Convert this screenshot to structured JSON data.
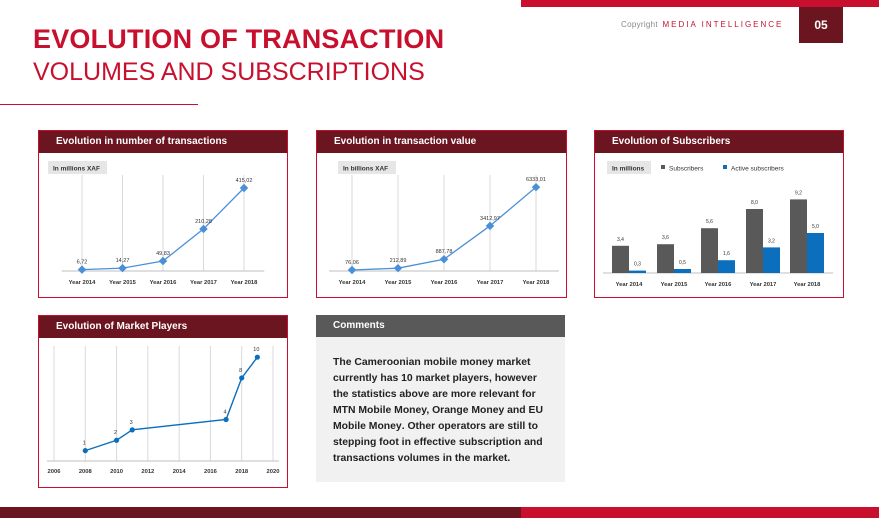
{
  "header": {
    "copyright_label": "Copyright",
    "copyright_brand": "MEDIA INTELLIGENCE",
    "page_number": "05",
    "title_line1": "EVOLUTION OF TRANSACTION",
    "title_line2": "VOLUMES AND SUBSCRIPTIONS"
  },
  "colors": {
    "accent": "#c8102e",
    "dark": "#6b1520",
    "line": "#4a90d9",
    "bar_gray": "#595959",
    "bar_blue": "#0b6fbd"
  },
  "chart_data": [
    {
      "type": "line",
      "title": "Evolution in number of transactions",
      "unit_label": "In millions XAF",
      "categories": [
        "Year 2014",
        "Year 2015",
        "Year 2016",
        "Year 2017",
        "Year 2018"
      ],
      "values": [
        6.72,
        14.27,
        49.83,
        210.28,
        415.02
      ],
      "value_labels": [
        "6,72",
        "14,27",
        "49,83",
        "210,28",
        "415,02"
      ],
      "ylim": [
        0,
        450
      ],
      "grid": "vertical"
    },
    {
      "type": "line",
      "title": "Evolution in transaction value",
      "unit_label": "In billions XAF",
      "categories": [
        "Year 2014",
        "Year 2015",
        "Year 2016",
        "Year 2017",
        "Year 2018"
      ],
      "values": [
        76.06,
        212.89,
        887.78,
        3412.97,
        6333.01
      ],
      "value_labels": [
        "76,06",
        "212,89",
        "887,78",
        "3412,97",
        "6333,01"
      ],
      "ylim": [
        0,
        6800
      ],
      "grid": "vertical"
    },
    {
      "type": "bar",
      "title": "Evolution of Subscribers",
      "unit_label": "In millions",
      "categories": [
        "Year 2014",
        "Year 2015",
        "Year 2016",
        "Year 2017",
        "Year 2018"
      ],
      "series": [
        {
          "name": "Subscribers",
          "values": [
            3.4,
            3.6,
            5.6,
            8.0,
            9.2
          ],
          "value_labels": [
            "3,4",
            "3,6",
            "5,6",
            "8,0",
            "9,2"
          ]
        },
        {
          "name": "Active subscribers",
          "values": [
            0.3,
            0.5,
            1.6,
            3.2,
            5.0
          ],
          "value_labels": [
            "0,3",
            "0,5",
            "1,6",
            "3,2",
            "5,0"
          ]
        }
      ],
      "ylim": [
        0,
        10
      ],
      "legend": "top"
    },
    {
      "type": "line",
      "title": "Evolution  of Market Players",
      "x": [
        2008,
        2010,
        2011,
        2017,
        2018,
        2019
      ],
      "values": [
        1,
        2,
        3,
        4,
        8,
        10
      ],
      "value_labels": [
        "1",
        "2",
        "3",
        "4",
        "8",
        "10"
      ],
      "xticks": [
        "2006",
        "2008",
        "2010",
        "2012",
        "2014",
        "2016",
        "2018",
        "2020"
      ],
      "xlim": [
        2006,
        2020
      ],
      "ylim": [
        0,
        10.5
      ],
      "grid": "vertical"
    }
  ],
  "comments": {
    "title": "Comments",
    "text1": "The Cameroonian mobile money market currently has 10 market players, however the statistics above are more relevant for ",
    "bold": "MTN Mobile Money, Orange Money and EU Mobile Money",
    "text2": ". Other operators are still to stepping foot in effective subscription and transactions volumes in the market."
  }
}
